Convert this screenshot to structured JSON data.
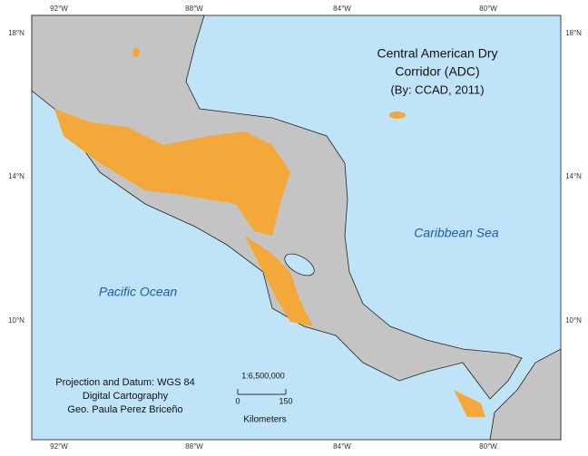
{
  "title_lines": [
    "Central American Dry",
    "Corridor (ADC)"
  ],
  "subtitle": "(By: CCAD, 2011)",
  "labels": {
    "pacific": "Pacific Ocean",
    "caribbean": "Caribbean Sea"
  },
  "lon_labels": [
    "92°W",
    "88°W",
    "84°W",
    "80°W"
  ],
  "lat_labels": [
    "18°N",
    "14°N",
    "10°N"
  ],
  "scale": {
    "ratio": "1:6,500,000",
    "start": "0",
    "end": "150",
    "unit": "Kilometers"
  },
  "credits": [
    "Projection and Datum: WGS 84",
    "Digital Cartography",
    "Geo. Paula Perez Briceño"
  ]
}
